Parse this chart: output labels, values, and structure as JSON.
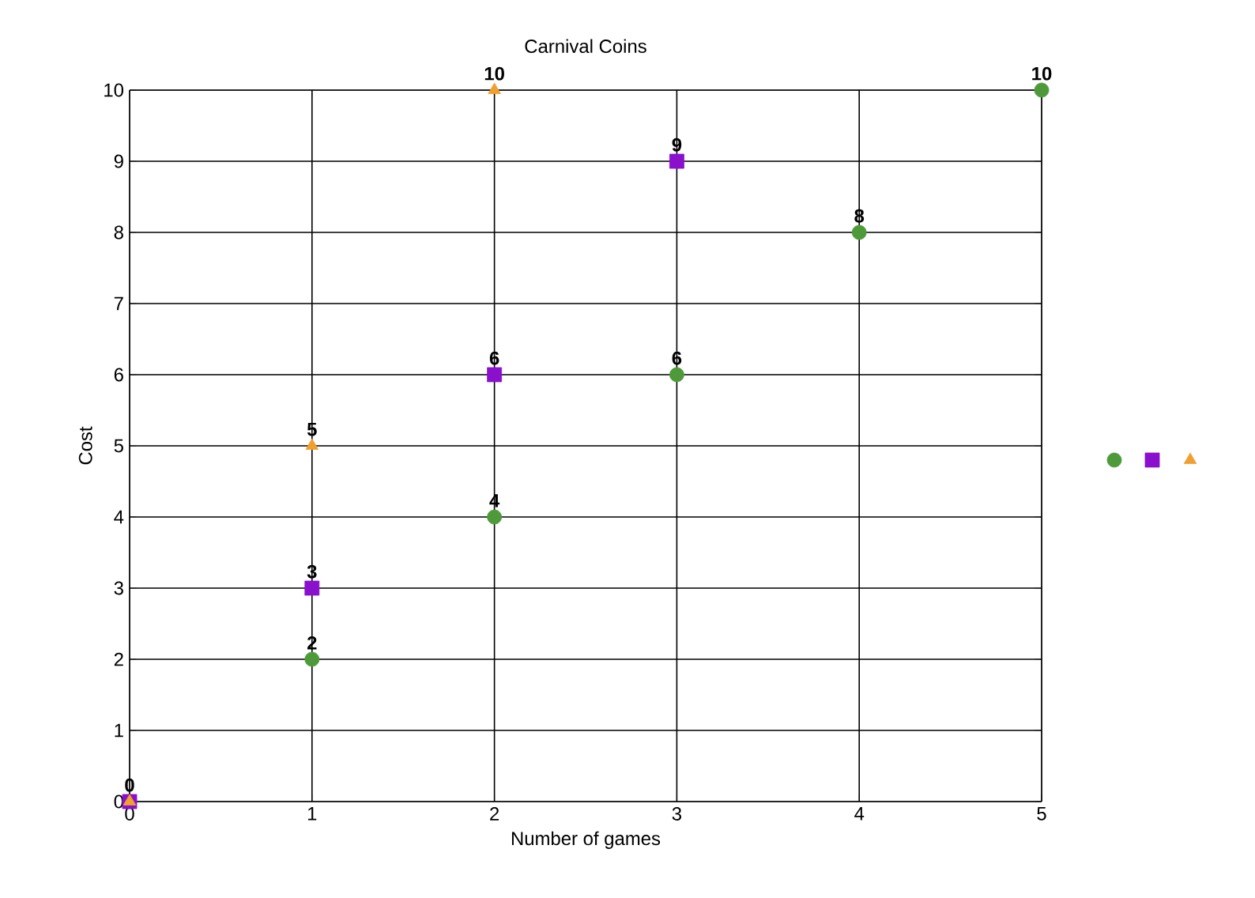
{
  "chart_data": {
    "type": "scatter",
    "title": "Carnival Coins",
    "xlabel": "Number of games",
    "ylabel": "Cost",
    "series": [
      {
        "color": "#4e9a3a",
        "marker": "circle",
        "x": [
          0,
          1,
          2,
          3,
          4,
          5
        ],
        "values": [
          0,
          2,
          4,
          6,
          8,
          10
        ],
        "value_labels": [
          "0",
          "2",
          "4",
          "6",
          "8",
          "10"
        ]
      },
      {
        "color": "#8a10cc",
        "marker": "square",
        "x": [
          0,
          1,
          2,
          3
        ],
        "values": [
          0,
          3,
          6,
          9
        ],
        "value_labels": [
          null,
          "3",
          "6",
          "9"
        ]
      },
      {
        "color": "#f0a030",
        "marker": "triangle",
        "x": [
          0,
          1,
          2
        ],
        "values": [
          0,
          5,
          10
        ],
        "value_labels": [
          null,
          "5",
          "10"
        ]
      }
    ],
    "xlim": [
      0,
      5
    ],
    "ylim": [
      0,
      10
    ],
    "xticks": [
      0,
      1,
      2,
      3,
      4,
      5
    ],
    "yticks": [
      0,
      1,
      2,
      3,
      4,
      5,
      6,
      7,
      8,
      9,
      10
    ],
    "grid": true
  }
}
